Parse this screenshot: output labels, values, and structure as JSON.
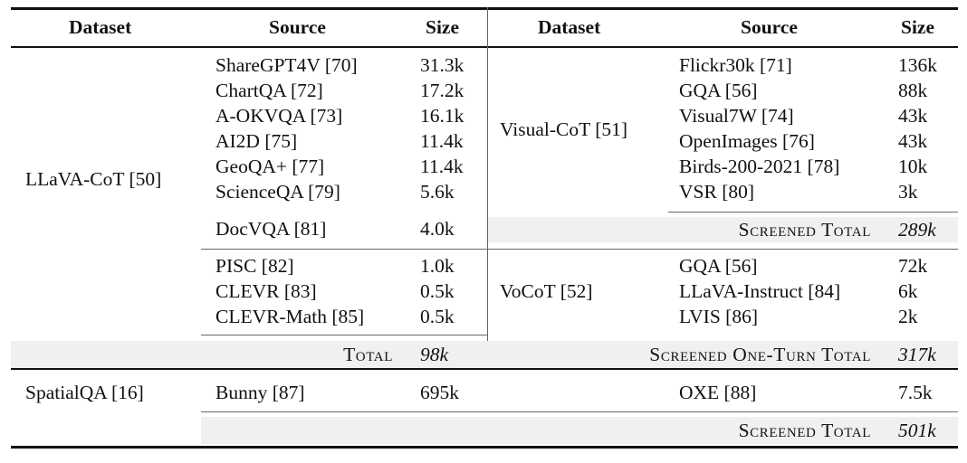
{
  "headers": {
    "left_dataset": "Dataset",
    "left_source": "Source",
    "left_size": "Size",
    "right_dataset": "Dataset",
    "right_source": "Source",
    "right_size": "Size"
  },
  "left": {
    "llava_cot": {
      "name": "LLaVA-CoT [50]",
      "group1": [
        {
          "source": "ShareGPT4V [70]",
          "size": "31.3k"
        },
        {
          "source": "ChartQA [72]",
          "size": "17.2k"
        },
        {
          "source": "A-OKVQA [73]",
          "size": "16.1k"
        },
        {
          "source": "AI2D [75]",
          "size": "11.4k"
        },
        {
          "source": "GeoQA+ [77]",
          "size": "11.4k"
        },
        {
          "source": "ScienceQA [79]",
          "size": "5.6k"
        }
      ],
      "group2": [
        {
          "source": "DocVQA [81]",
          "size": "4.0k"
        }
      ],
      "group3": [
        {
          "source": "PISC [82]",
          "size": "1.0k"
        },
        {
          "source": "CLEVR [83]",
          "size": "0.5k"
        },
        {
          "source": "CLEVR-Math [85]",
          "size": "0.5k"
        }
      ],
      "total_label": "Total",
      "total_value": "98k"
    },
    "spatialqa": {
      "name": "SpatialQA [16]",
      "source": "Bunny [87]",
      "size": "695k"
    }
  },
  "right": {
    "visual_cot": {
      "name": "Visual-CoT [51]",
      "rows": [
        {
          "source": "Flickr30k [71]",
          "size": "136k"
        },
        {
          "source": "GQA [56]",
          "size": "88k"
        },
        {
          "source": "Visual7W [74]",
          "size": "43k"
        },
        {
          "source": "OpenImages [76]",
          "size": "43k"
        },
        {
          "source": "Birds-200-2021 [78]",
          "size": "10k"
        },
        {
          "source": "VSR [80]",
          "size": "3k"
        }
      ],
      "total_label": "Screened Total",
      "total_value": "289k"
    },
    "vocot": {
      "name": "VoCoT [52]",
      "rows": [
        {
          "source": "GQA [56]",
          "size": "72k"
        },
        {
          "source": "LLaVA-Instruct [84]",
          "size": "6k"
        },
        {
          "source": "LVIS [86]",
          "size": "2k"
        }
      ]
    },
    "one_turn_total_label": "Screened One-Turn Total",
    "one_turn_total_value": "317k",
    "oxe": {
      "source": "OXE [88]",
      "size": "7.5k"
    },
    "final_total_label": "Screened Total",
    "final_total_value": "501k"
  }
}
